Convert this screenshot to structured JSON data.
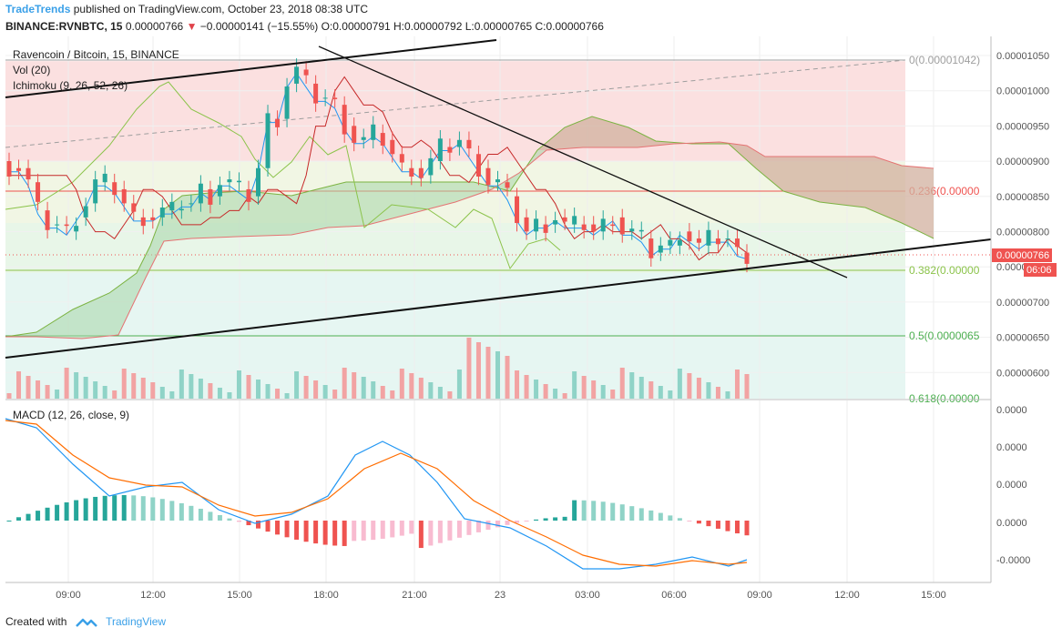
{
  "header": {
    "brand": "TradeTrends",
    "published": "published on TradingView.com, October 23, 2018 08:38 UTC",
    "symbol": "BINANCE:RVNBTC, 15",
    "price": "0.00000766",
    "change": "−0.00000141 (−15.55%)",
    "ohlc": "O:0.00000791 H:0.00000792 L:0.00000765 C:0.00000766"
  },
  "legend": {
    "title": "Ravencoin / Bitcoin, 15, BINANCE",
    "vol": "Vol (20)",
    "ichimoku": "Ichimoku (9, 26, 52, 26)",
    "macd": "MACD (12, 26, close, 9)"
  },
  "price_axis": [
    "0.00001050",
    "0.00001000",
    "0.00000950",
    "0.00000900",
    "0.00000850",
    "0.00000800",
    "0.00000750",
    "0.00000700",
    "0.00000650",
    "0.00000600"
  ],
  "last_price_label": "0.00000766",
  "countdown_label": "06:06",
  "macd_axis": [
    "0.0000",
    "0.0000",
    "0.0000",
    "0.0000",
    "-0.0000"
  ],
  "time_axis": [
    "09:00",
    "12:00",
    "15:00",
    "18:00",
    "21:00",
    "23",
    "03:00",
    "06:00",
    "09:00",
    "12:00",
    "15:00"
  ],
  "fib_labels": [
    {
      "level": 0,
      "text": "0(0.00001042)"
    },
    {
      "level": 0.236,
      "text": "0.236(0.00000"
    },
    {
      "level": 0.382,
      "text": "0.382(0.00000"
    },
    {
      "level": 0.5,
      "text": "0.5(0.0000065"
    },
    {
      "level": 0.618,
      "text": "0.618(0.00000"
    }
  ],
  "colors": {
    "up": "#26a69a",
    "down": "#ef5350",
    "vol_up": "#8fd3c7",
    "vol_down": "#f2a3a3",
    "fib0": "#9e9e9e",
    "fib236": "#ef5350",
    "fib382": "#8bc34a",
    "fib5": "#4caf50",
    "macd_line": "#2196f3",
    "signal_line": "#ff6d00",
    "tenkan": "#2196f3",
    "kijun": "#c62828",
    "brand": "#3aa0e8"
  },
  "footer": {
    "created": "Created with",
    "brand": "TradingView"
  },
  "chart_data": {
    "type": "candlestick",
    "title": "Ravencoin / Bitcoin, 15, BINANCE",
    "ylim": [
      5.65e-06,
      1.07e-05
    ],
    "close_series_start": 8.9e-06,
    "last_close": 7.66e-06,
    "candles_visible": 78,
    "fibonacci": {
      "high": 1.042e-05,
      "levels": [
        0,
        0.236,
        0.382,
        0.5,
        0.618
      ]
    },
    "trendlines": [
      {
        "name": "upper",
        "from": [
          "08:00",
          9.85e-06
        ],
        "to": [
          "19:10",
          1.043e-05
        ]
      },
      {
        "name": "descending",
        "from": [
          "18:00",
          1.05e-05
        ],
        "to": [
          "12:00",
          7.35e-06
        ]
      },
      {
        "name": "support",
        "from": [
          "08:00",
          6.25e-06
        ],
        "to": [
          "15:30",
          7.9e-06
        ]
      }
    ],
    "legend": "none",
    "grid": true
  }
}
